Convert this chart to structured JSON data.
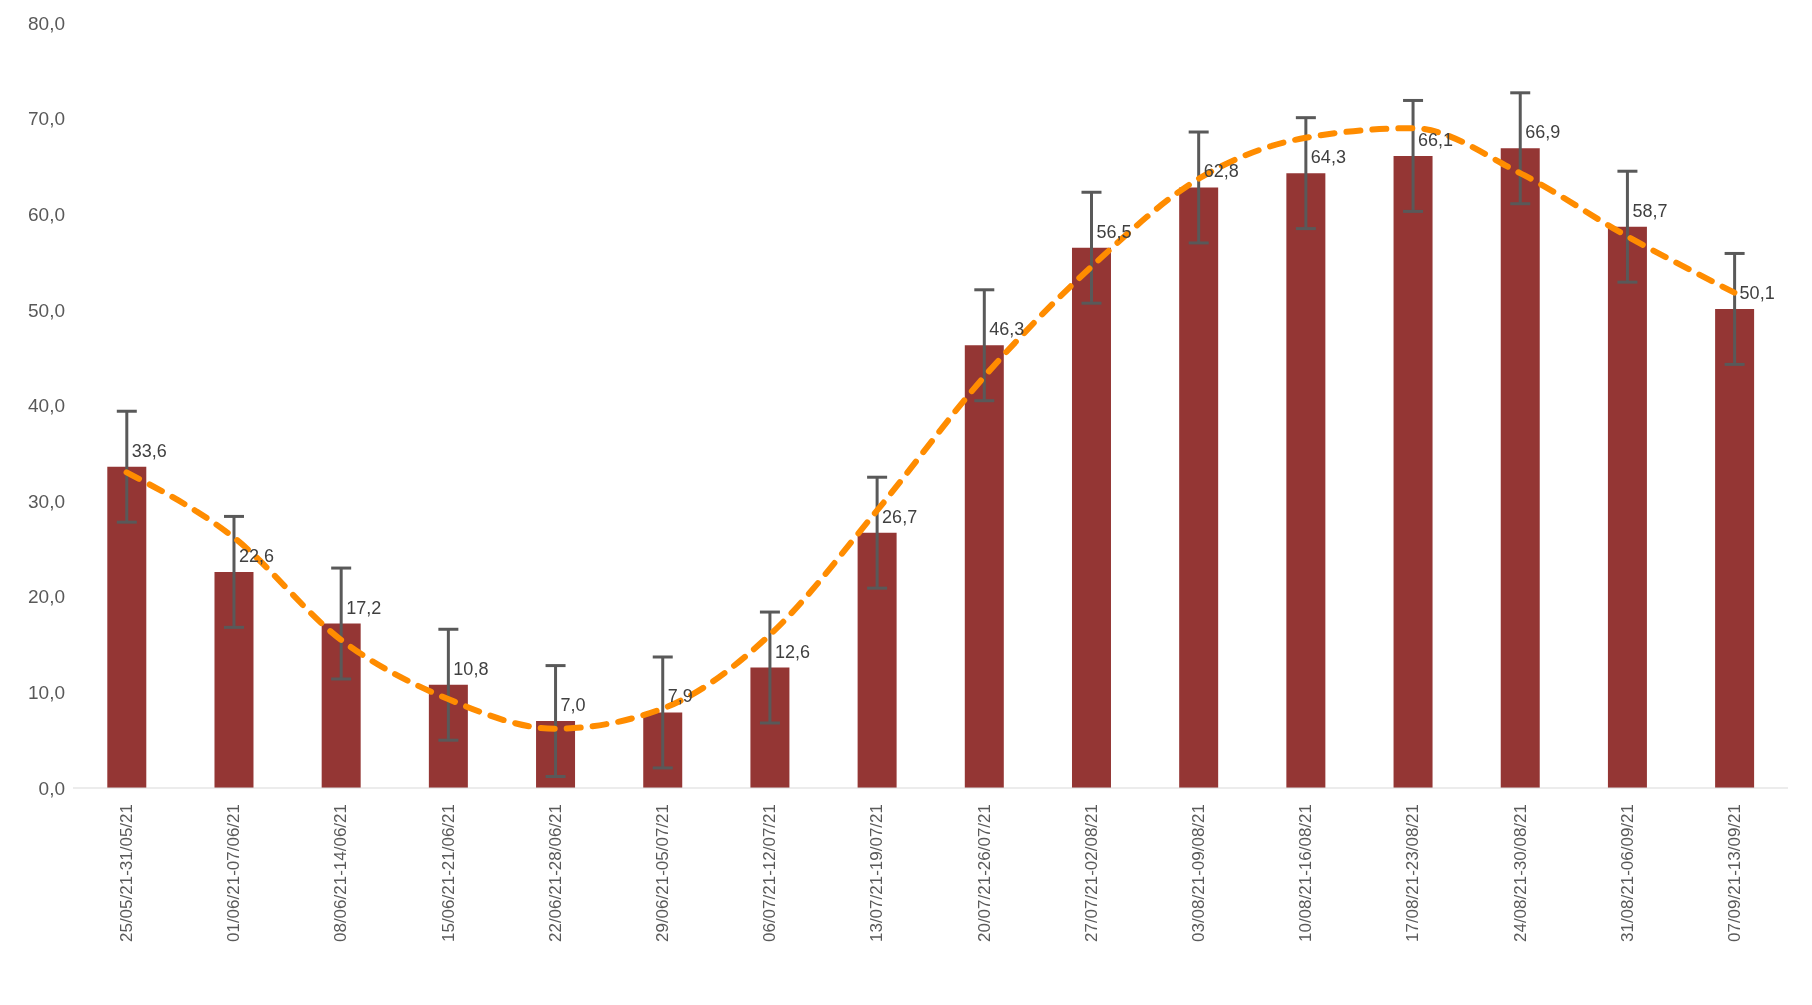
{
  "chart_data": {
    "type": "bar",
    "categories": [
      "25/05/21-31/05/21",
      "01/06/21-07/06/21",
      "08/06/21-14/06/21",
      "15/06/21-21/06/21",
      "22/06/21-28/06/21",
      "29/06/21-05/07/21",
      "06/07/21-12/07/21",
      "13/07/21-19/07/21",
      "20/07/21-26/07/21",
      "27/07/21-02/08/21",
      "03/08/21-09/08/21",
      "10/08/21-16/08/21",
      "17/08/21-23/08/21",
      "24/08/21-30/08/21",
      "31/08/21-06/09/21",
      "07/09/21-13/09/21"
    ],
    "series": [
      {
        "color": "#943634",
        "values": [
          33.6,
          22.6,
          17.2,
          10.8,
          7.0,
          7.9,
          12.6,
          26.7,
          46.3,
          56.5,
          62.8,
          64.3,
          66.1,
          66.9,
          58.7,
          50.1
        ],
        "errors": [
          5.8,
          5.8,
          5.8,
          5.8,
          5.8,
          5.8,
          5.8,
          5.8,
          5.8,
          5.8,
          5.8,
          5.8,
          5.8,
          5.8,
          5.8,
          5.8
        ],
        "value_labels": [
          "33,6",
          "22,6",
          "17,2",
          "10,8",
          "7,0",
          "7,9",
          "12,6",
          "26,7",
          "46,3",
          "56,5",
          "62,8",
          "64,3",
          "66,1",
          "66,9",
          "58,7",
          "50,1"
        ]
      },
      {
        "type": "line",
        "color": "#ff8c00",
        "line_style": "dashed",
        "marker": "none",
        "values": [
          33,
          26.2,
          15.5,
          9.3,
          6.2,
          8.3,
          16,
          29,
          43,
          54.5,
          63.7,
          68,
          69,
          64.3,
          57.7,
          51.8
        ]
      }
    ],
    "ylim": [
      0,
      80
    ],
    "yticks": [
      {
        "value": 0,
        "label": "0,0"
      },
      {
        "value": 10,
        "label": "10,0"
      },
      {
        "value": 20,
        "label": "20,0"
      },
      {
        "value": 30,
        "label": "30,0"
      },
      {
        "value": 40,
        "label": "40,0"
      },
      {
        "value": 50,
        "label": "50,0"
      },
      {
        "value": 60,
        "label": "60,0"
      },
      {
        "value": 70,
        "label": "70,0"
      },
      {
        "value": 80,
        "label": "80,0"
      }
    ],
    "grid": false,
    "legend": false
  }
}
